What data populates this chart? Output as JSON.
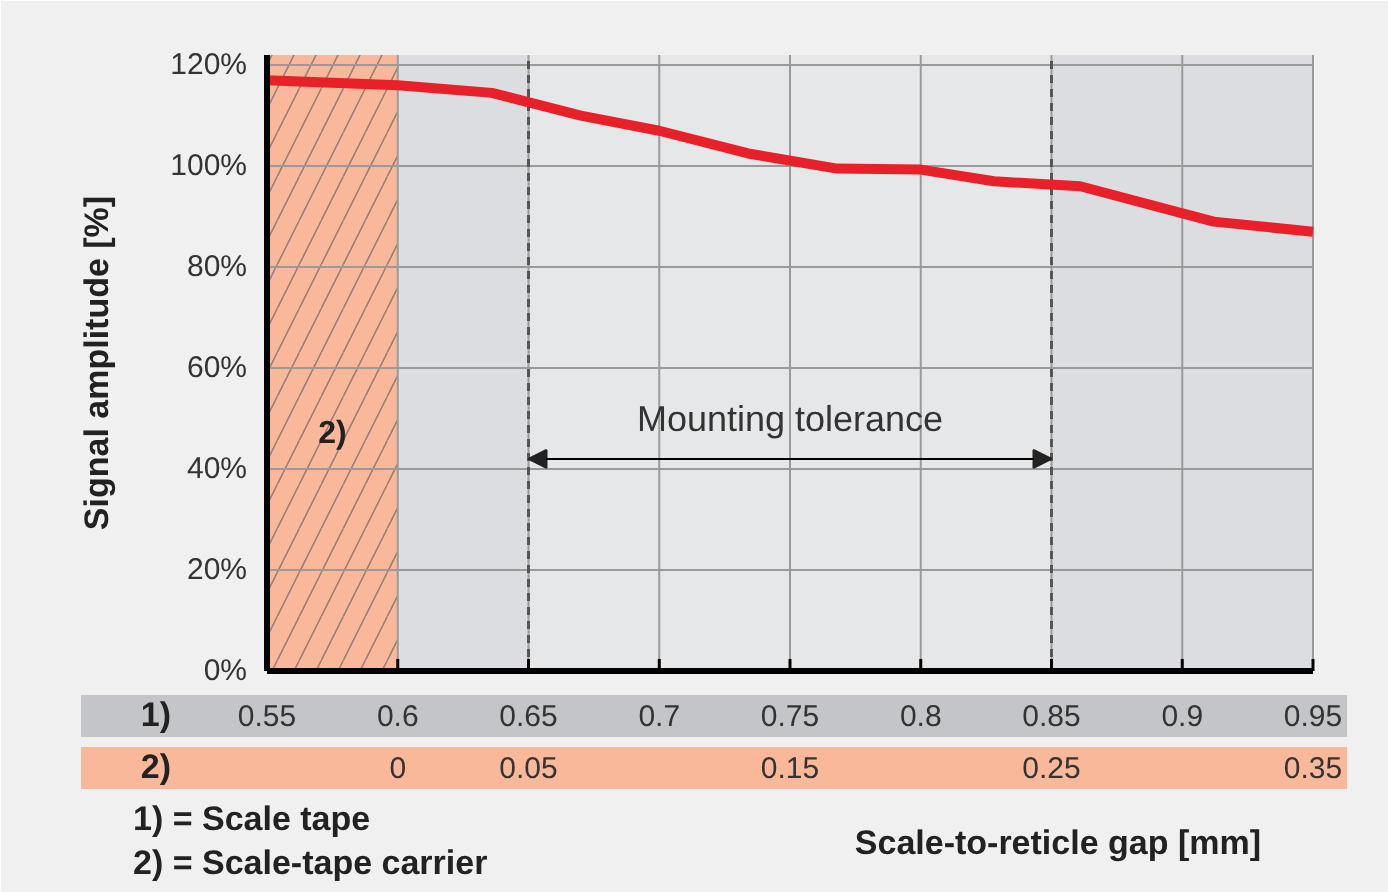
{
  "chart_data": {
    "type": "line",
    "ylabel": "Signal amplitude [%]",
    "xlabel": "Scale-to-reticle gap [mm]",
    "x": [
      0.55,
      0.6,
      0.636,
      0.67,
      0.7,
      0.734,
      0.768,
      0.8,
      0.828,
      0.861,
      0.912,
      0.95
    ],
    "series": [
      {
        "color": "#e8202a",
        "values": [
          117,
          116,
          114.5,
          110,
          107,
          102.5,
          99.5,
          99.3,
          97,
          96,
          89,
          87
        ]
      }
    ],
    "xlim": [
      0.55,
      0.95
    ],
    "xticks": [
      0.55,
      0.6,
      0.65,
      0.7,
      0.75,
      0.8,
      0.85,
      0.9,
      0.95
    ],
    "x2lim": [
      -0.05,
      0.35
    ],
    "x2ticks": [
      0,
      0.05,
      0.15,
      0.25,
      0.35
    ],
    "ylim": [
      0,
      122
    ],
    "yticks": [
      {
        "value": 0,
        "label": "0%"
      },
      {
        "value": 20,
        "label": "20%"
      },
      {
        "value": 40,
        "label": "40%"
      },
      {
        "value": 60,
        "label": "60%"
      },
      {
        "value": 80,
        "label": "80%"
      },
      {
        "value": 100,
        "label": "100%"
      },
      {
        "value": 120,
        "label": "120%"
      }
    ],
    "grid": true,
    "line_style": "solid",
    "marker": "none",
    "bands": [
      {
        "axis": "x",
        "from": 0.55,
        "to": 0.6,
        "label": "2)",
        "color": "#f9b89a"
      },
      {
        "axis": "x",
        "from": 0.6,
        "to": 0.65,
        "color": "#dcdde0"
      },
      {
        "axis": "x",
        "from": 0.65,
        "to": 0.85,
        "label": "Mounting tolerance",
        "color": "#e6e7e9"
      },
      {
        "axis": "x",
        "from": 0.85,
        "to": 0.95,
        "color": "#dcdde0"
      }
    ],
    "annotations": [
      "1)",
      "2)",
      "1) = Scale tape",
      "2) = Scale-tape carrier"
    ]
  }
}
